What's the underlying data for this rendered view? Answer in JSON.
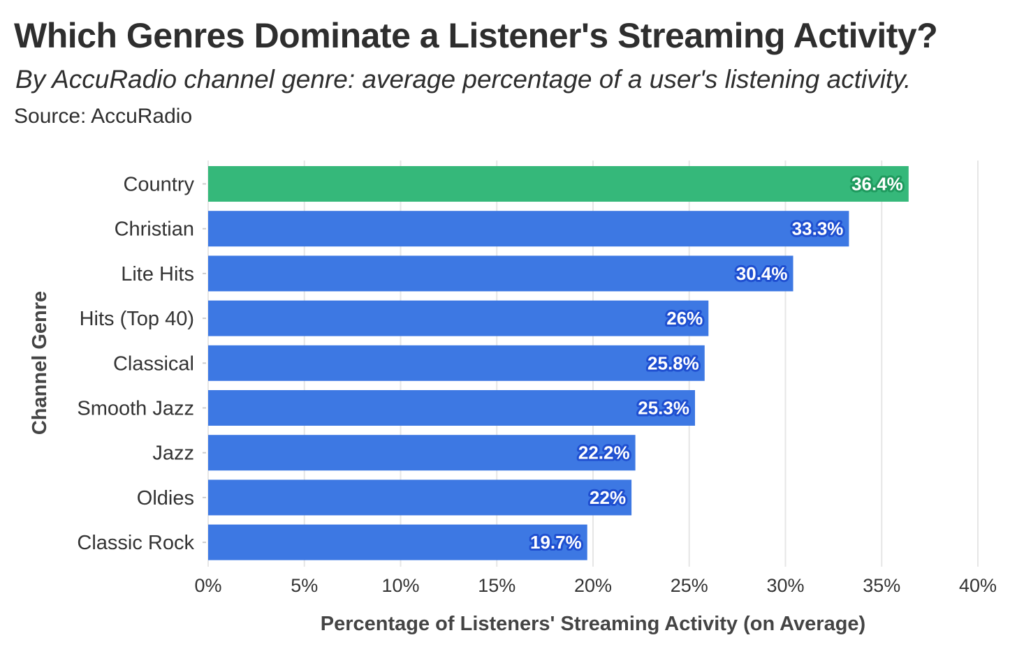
{
  "title": "Which Genres Dominate a Listener's Streaming Activity?",
  "subtitle": "By AccuRadio channel genre: average percentage of a user's listening activity.",
  "source": "Source: AccuRadio",
  "colors": {
    "highlight": "#35b87a",
    "bar": "#3d78e3",
    "highlight_label_stroke": "#1f9a5e",
    "bar_label_stroke": "#1f4fd0",
    "grid": "#e6e6e6"
  },
  "chart_data": {
    "type": "bar",
    "orientation": "horizontal",
    "categories": [
      "Country",
      "Christian",
      "Lite Hits",
      "Hits (Top 40)",
      "Classical",
      "Smooth Jazz",
      "Jazz",
      "Oldies",
      "Classic Rock"
    ],
    "values": [
      36.4,
      33.3,
      30.4,
      26,
      25.8,
      25.3,
      22.2,
      22,
      19.7
    ],
    "data_labels": [
      "36.4%",
      "33.3%",
      "30.4%",
      "26%",
      "25.8%",
      "25.3%",
      "22.2%",
      "22%",
      "19.7%"
    ],
    "highlighted_category": "Country",
    "xlabel": "Percentage of Listeners' Streaming Activity (on Average)",
    "ylabel": "Channel Genre",
    "xlim": [
      0,
      40
    ],
    "xticks": [
      0,
      5,
      10,
      15,
      20,
      25,
      30,
      35,
      40
    ],
    "xtick_labels": [
      "0%",
      "5%",
      "10%",
      "15%",
      "20%",
      "25%",
      "30%",
      "35%",
      "40%"
    ],
    "grid": true,
    "legend": "none"
  }
}
